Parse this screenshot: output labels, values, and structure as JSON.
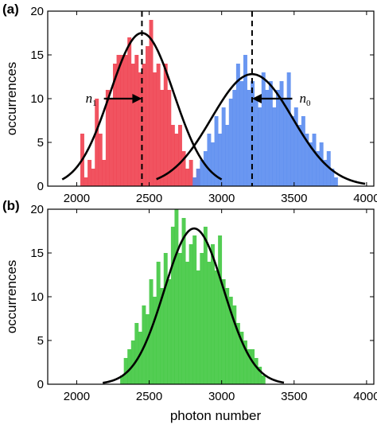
{
  "chart_data": [
    {
      "type": "bar",
      "panel_label": "(a)",
      "xlabel": "",
      "ylabel": "occurrences",
      "xlim": [
        1800,
        4050
      ],
      "ylim": [
        0,
        20
      ],
      "xticks": [
        2000,
        2500,
        3000,
        3500,
        4000
      ],
      "yticks": [
        0,
        5,
        10,
        15,
        20
      ],
      "bin_width": 25,
      "colors": {
        "red": "#f0404f",
        "blue": "#5a8cf0",
        "fit": "#000000"
      },
      "series": [
        {
          "color": "red",
          "x": [
            2025,
            2050,
            2075,
            2100,
            2125,
            2150,
            2175,
            2200,
            2225,
            2250,
            2275,
            2300,
            2325,
            2350,
            2375,
            2400,
            2425,
            2450,
            2475,
            2500,
            2525,
            2550,
            2575,
            2600,
            2625,
            2650,
            2675,
            2700,
            2725,
            2750,
            2775,
            2800,
            2825
          ],
          "values": [
            6,
            1,
            3,
            2,
            10,
            6,
            3,
            11,
            10,
            14,
            15,
            15,
            15,
            17,
            14,
            15,
            13,
            14,
            16,
            19,
            13,
            14,
            11,
            14,
            11,
            7,
            6,
            7,
            4,
            2,
            3,
            1,
            2
          ]
        },
        {
          "color": "blue",
          "x": [
            2800,
            2825,
            2850,
            2875,
            2900,
            2925,
            2950,
            2975,
            3000,
            3025,
            3050,
            3075,
            3100,
            3125,
            3150,
            3175,
            3200,
            3225,
            3250,
            3275,
            3300,
            3325,
            3350,
            3375,
            3400,
            3425,
            3450,
            3475,
            3500,
            3525,
            3550,
            3575,
            3600,
            3625,
            3650,
            3675,
            3700,
            3725,
            3750,
            3775
          ],
          "values": [
            1,
            2,
            3,
            4,
            6,
            5,
            8,
            6,
            9,
            7,
            10,
            11,
            14,
            12,
            15,
            11,
            12,
            10,
            9,
            13,
            11,
            12,
            9,
            11,
            12,
            10,
            13,
            8,
            9,
            7,
            8,
            6,
            5,
            6,
            4,
            5,
            3,
            4,
            2,
            1
          ]
        }
      ],
      "fits": [
        {
          "type": "gaussian",
          "mean": 2450,
          "sigma": 220,
          "amplitude": 17.5,
          "x_range": [
            1900,
            3000
          ]
        },
        {
          "type": "gaussian",
          "mean": 3210,
          "sigma": 280,
          "amplitude": 12.8,
          "x_range": [
            2550,
            3990
          ]
        }
      ],
      "markers": [
        {
          "x": 2450,
          "style": "dashed"
        },
        {
          "x": 3210,
          "style": "dashed"
        }
      ],
      "annotations": [
        {
          "text": "n",
          "sub": "1",
          "x": 2100,
          "y": 10,
          "arrow_to_x": 2450
        },
        {
          "text": "n",
          "sub": "0",
          "x": 3575,
          "y": 10,
          "arrow_to_x": 3210
        }
      ]
    },
    {
      "type": "bar",
      "panel_label": "(b)",
      "xlabel": "photon number",
      "ylabel": "occurrences",
      "xlim": [
        1800,
        4050
      ],
      "ylim": [
        0,
        20
      ],
      "xticks": [
        2000,
        2500,
        3000,
        3500,
        4000
      ],
      "yticks": [
        0,
        5,
        10,
        15,
        20
      ],
      "bin_width": 25,
      "colors": {
        "green": "#40c840",
        "fit": "#000000"
      },
      "series": [
        {
          "color": "green",
          "x": [
            2300,
            2325,
            2350,
            2375,
            2400,
            2425,
            2450,
            2475,
            2500,
            2525,
            2550,
            2575,
            2600,
            2625,
            2650,
            2675,
            2700,
            2725,
            2750,
            2775,
            2800,
            2825,
            2850,
            2875,
            2900,
            2925,
            2950,
            2975,
            3000,
            3025,
            3050,
            3075,
            3100,
            3125,
            3150,
            3175,
            3200,
            3225,
            3250,
            3275
          ],
          "values": [
            1,
            3,
            4,
            5,
            7,
            6,
            9,
            8,
            12,
            10,
            14,
            11,
            15,
            12,
            18,
            20,
            15,
            19,
            14,
            16,
            17,
            13,
            15,
            18,
            14,
            16,
            13,
            17,
            12,
            11,
            10,
            9,
            7,
            6,
            5,
            4,
            4,
            3,
            2,
            1
          ]
        }
      ],
      "fits": [
        {
          "type": "gaussian",
          "mean": 2810,
          "sigma": 205,
          "amplitude": 17.8,
          "x_range": [
            2180,
            3430
          ]
        }
      ]
    }
  ]
}
